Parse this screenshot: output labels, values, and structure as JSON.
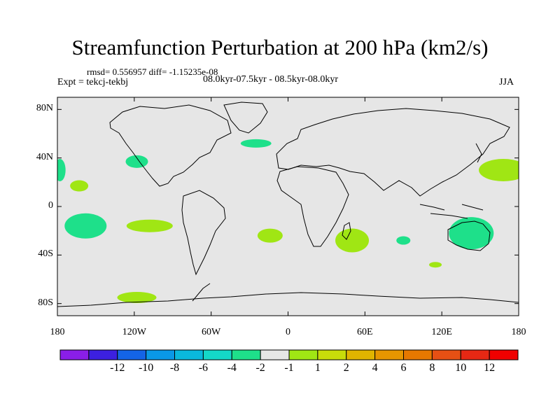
{
  "title": "Streamfunction Perturbation at 200 hPa (km2/s)",
  "stats_text": "rmsd= 0.556957 diff= -1.15235e-08",
  "experiment_text": "Expt = tekcj-tekbj",
  "period_text": "08.0kyr-07.5kyr - 08.5kyr-08.0kyr",
  "season": "JJA",
  "map": {
    "lon_range": [
      -180,
      180
    ],
    "lat_range": [
      -90,
      90
    ],
    "x_ticks": [
      {
        "lon": -180,
        "label": "180"
      },
      {
        "lon": -120,
        "label": "120W"
      },
      {
        "lon": -60,
        "label": "60W"
      },
      {
        "lon": 0,
        "label": "0"
      },
      {
        "lon": 60,
        "label": "60E"
      },
      {
        "lon": 120,
        "label": "120E"
      },
      {
        "lon": 180,
        "label": "180"
      }
    ],
    "y_ticks": [
      {
        "lat": 80,
        "label": "80N"
      },
      {
        "lat": 40,
        "label": "40N"
      },
      {
        "lat": 0,
        "label": "0"
      },
      {
        "lat": -40,
        "label": "40S"
      },
      {
        "lat": -80,
        "label": "80S"
      }
    ],
    "background_color": "#e6e6e6",
    "anomaly_regions": [
      {
        "name": "north-atlantic-negative",
        "lon": -25,
        "lat": 52,
        "class": "-2 to -1",
        "color": "#1ee08a"
      },
      {
        "name": "california-negative",
        "lon": -118,
        "lat": 37,
        "class": "-2 to -1",
        "color": "#1ee08a"
      },
      {
        "name": "east-pacific-dateline-negative",
        "lon": -178,
        "lat": 30,
        "class": "-2 to -1",
        "color": "#1ee08a"
      },
      {
        "name": "subtropical-pacific-positive",
        "lon": -163,
        "lat": 17,
        "class": "1 to 2",
        "color": "#a0e614"
      },
      {
        "name": "south-pacific-negative",
        "lon": -158,
        "lat": -16,
        "class": "-2 to -1",
        "color": "#1ee08a"
      },
      {
        "name": "southeast-pacific-positive",
        "lon": -108,
        "lat": -16,
        "class": "1 to 2",
        "color": "#a0e614"
      },
      {
        "name": "south-atlantic-positive",
        "lon": -14,
        "lat": -24,
        "class": "1 to 2",
        "color": "#a0e614"
      },
      {
        "name": "southwest-indian-positive",
        "lon": 50,
        "lat": -28,
        "class": "1 to 2",
        "color": "#a0e614"
      },
      {
        "name": "south-indian-small-negative",
        "lon": 90,
        "lat": -28,
        "class": "-2 to -1",
        "color": "#1ee08a"
      },
      {
        "name": "australia-negative",
        "lon": 143,
        "lat": -22,
        "class": "-2 to -1",
        "color": "#1ee08a"
      },
      {
        "name": "south-indian-tiny-positive",
        "lon": 115,
        "lat": -48,
        "class": "1 to 2",
        "color": "#a0e614"
      },
      {
        "name": "northwest-pacific-positive",
        "lon": 168,
        "lat": 30,
        "class": "1 to 2",
        "color": "#a0e614"
      },
      {
        "name": "southern-ocean-positive",
        "lon": -118,
        "lat": -75,
        "class": "1 to 2",
        "color": "#a0e614"
      }
    ]
  },
  "colorbar": {
    "colors": [
      "#8a1ee8",
      "#3c20e0",
      "#1464e6",
      "#0a98e6",
      "#0ab8dc",
      "#14d8c8",
      "#1ee08a",
      "#e6e6e6",
      "#a0e614",
      "#c8dc0a",
      "#e0b400",
      "#e69600",
      "#e67800",
      "#e65014",
      "#e62814",
      "#f00000"
    ],
    "labels": [
      "-12",
      "-10",
      "-8",
      "-6",
      "-4",
      "-2",
      "-1",
      "1",
      "2",
      "4",
      "6",
      "8",
      "10",
      "12"
    ]
  }
}
